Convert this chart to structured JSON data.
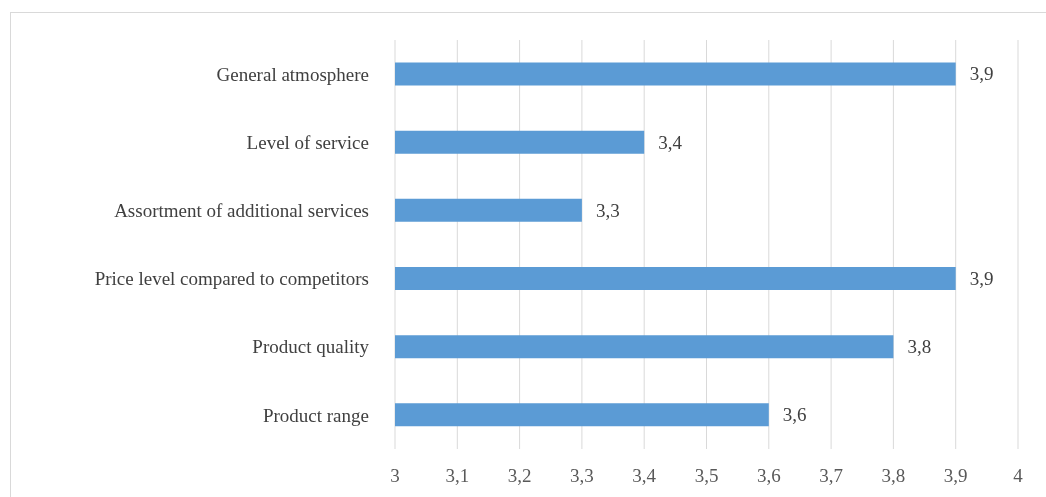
{
  "chart_data": {
    "type": "bar",
    "orientation": "horizontal",
    "categories": [
      "General atmosphere",
      "Level of service",
      "Assortment of additional services",
      "Price level compared to competitors",
      "Product quality",
      "Product range"
    ],
    "values": [
      3.9,
      3.4,
      3.3,
      3.9,
      3.8,
      3.6
    ],
    "value_labels": [
      "3,9",
      "3,4",
      "3,3",
      "3,9",
      "3,8",
      "3,6"
    ],
    "color": "#5b9bd5",
    "xlim": [
      3,
      4
    ],
    "xticks": [
      3,
      {
        "value": 3.1,
        "label": "3,1"
      },
      {
        "value": 3.2,
        "label": "3,2"
      },
      {
        "value": 3.3,
        "label": "3,3"
      },
      {
        "value": 3.4,
        "label": "3,4"
      },
      {
        "value": 3.5,
        "label": "3,5"
      },
      {
        "value": 3.6,
        "label": "3,6"
      },
      {
        "value": 3.7,
        "label": "3,7"
      },
      {
        "value": 3.8,
        "label": "3,8"
      },
      {
        "value": 3.9,
        "label": "3,9"
      },
      4
    ],
    "grid": "x"
  }
}
